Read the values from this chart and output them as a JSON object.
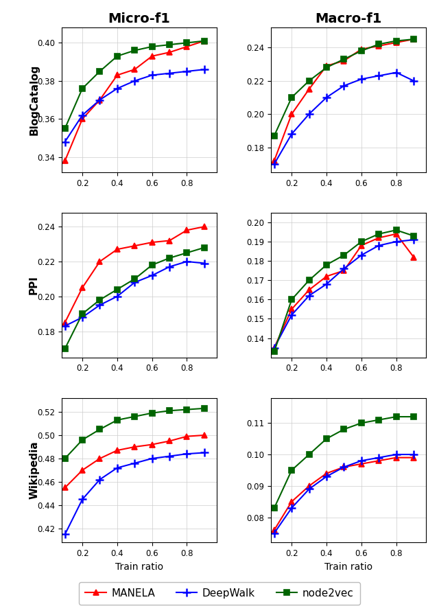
{
  "x": [
    0.1,
    0.2,
    0.3,
    0.4,
    0.5,
    0.6,
    0.7,
    0.8,
    0.9
  ],
  "blogcatalog_micro": {
    "MANELA": [
      0.338,
      0.36,
      0.37,
      0.383,
      0.386,
      0.393,
      0.395,
      0.398,
      0.401
    ],
    "DeepWalk": [
      0.348,
      0.362,
      0.37,
      0.376,
      0.38,
      0.383,
      0.384,
      0.385,
      0.386
    ],
    "node2vec": [
      0.355,
      0.376,
      0.385,
      0.393,
      0.396,
      0.398,
      0.399,
      0.4,
      0.401
    ]
  },
  "blogcatalog_macro": {
    "MANELA": [
      0.172,
      0.2,
      0.215,
      0.229,
      0.232,
      0.239,
      0.241,
      0.243,
      0.245
    ],
    "DeepWalk": [
      0.17,
      0.188,
      0.2,
      0.21,
      0.217,
      0.221,
      0.223,
      0.225,
      0.22
    ],
    "node2vec": [
      0.187,
      0.21,
      0.22,
      0.228,
      0.233,
      0.238,
      0.242,
      0.244,
      0.245
    ]
  },
  "ppi_micro": {
    "MANELA": [
      0.185,
      0.205,
      0.22,
      0.227,
      0.229,
      0.231,
      0.232,
      0.238,
      0.24
    ],
    "DeepWalk": [
      0.183,
      0.188,
      0.195,
      0.2,
      0.208,
      0.212,
      0.217,
      0.22,
      0.219
    ],
    "node2vec": [
      0.17,
      0.19,
      0.198,
      0.204,
      0.21,
      0.218,
      0.222,
      0.225,
      0.228
    ]
  },
  "ppi_macro": {
    "MANELA": [
      0.135,
      0.155,
      0.165,
      0.172,
      0.175,
      0.188,
      0.192,
      0.194,
      0.182
    ],
    "DeepWalk": [
      0.135,
      0.152,
      0.162,
      0.168,
      0.176,
      0.183,
      0.188,
      0.19,
      0.191
    ],
    "node2vec": [
      0.133,
      0.16,
      0.17,
      0.178,
      0.183,
      0.19,
      0.194,
      0.196,
      0.193
    ]
  },
  "wikipedia_micro": {
    "MANELA": [
      0.455,
      0.47,
      0.48,
      0.487,
      0.49,
      0.492,
      0.495,
      0.499,
      0.5
    ],
    "DeepWalk": [
      0.415,
      0.445,
      0.462,
      0.472,
      0.476,
      0.48,
      0.482,
      0.484,
      0.485
    ],
    "node2vec": [
      0.48,
      0.496,
      0.505,
      0.513,
      0.516,
      0.519,
      0.521,
      0.522,
      0.523
    ]
  },
  "wikipedia_macro": {
    "MANELA": [
      0.076,
      0.085,
      0.09,
      0.094,
      0.096,
      0.097,
      0.098,
      0.099,
      0.099
    ],
    "DeepWalk": [
      0.075,
      0.083,
      0.089,
      0.093,
      0.096,
      0.098,
      0.099,
      0.1,
      0.1
    ],
    "node2vec": [
      0.083,
      0.095,
      0.1,
      0.105,
      0.108,
      0.11,
      0.111,
      0.112,
      0.112
    ]
  },
  "colors": {
    "MANELA": "#ff0000",
    "DeepWalk": "#0000ff",
    "node2vec": "#006400"
  },
  "markers": {
    "MANELA": "^",
    "DeepWalk": "+",
    "node2vec": "s"
  },
  "markersize": {
    "MANELA": 6,
    "DeepWalk": 8,
    "node2vec": 6
  },
  "markeredgewidth": {
    "MANELA": 1.2,
    "DeepWalk": 1.8,
    "node2vec": 1.2
  },
  "row_labels": [
    "BlogCatalog",
    "PPI",
    "Wikipedia"
  ],
  "col_labels": [
    "Micro-f1",
    "Macro-f1"
  ],
  "xlabel": "Train ratio",
  "legend_labels": [
    "MANELA",
    "DeepWalk",
    "node2vec"
  ],
  "ylims": [
    [
      [
        0.332,
        0.408
      ],
      [
        0.165,
        0.252
      ]
    ],
    [
      [
        0.165,
        0.248
      ],
      [
        0.13,
        0.205
      ]
    ],
    [
      [
        0.408,
        0.532
      ],
      [
        0.072,
        0.118
      ]
    ]
  ],
  "yticks": [
    [
      [
        0.34,
        0.36,
        0.38,
        0.4
      ],
      [
        0.18,
        0.2,
        0.22,
        0.24
      ]
    ],
    [
      [
        0.18,
        0.2,
        0.22,
        0.24
      ],
      [
        0.14,
        0.15,
        0.16,
        0.17,
        0.18,
        0.19,
        0.2
      ]
    ],
    [
      [
        0.42,
        0.44,
        0.46,
        0.48,
        0.5,
        0.52
      ],
      [
        0.08,
        0.09,
        0.1,
        0.11
      ]
    ]
  ]
}
